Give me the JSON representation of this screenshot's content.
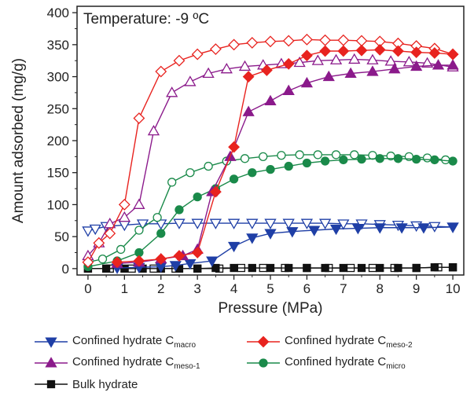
{
  "chart_data": {
    "type": "line",
    "annotation": "Temperature: -9 ºC",
    "xlabel": "Pressure (MPa)",
    "ylabel": "Amount adsorbed (mg/g)",
    "xlim": [
      -0.3,
      10.3
    ],
    "ylim": [
      -10,
      410
    ],
    "xticks": [
      0,
      1,
      2,
      3,
      4,
      5,
      6,
      7,
      8,
      9,
      10
    ],
    "yticks": [
      0,
      50,
      100,
      150,
      200,
      250,
      300,
      350,
      400
    ],
    "grid": false,
    "legend_position": "bottom",
    "series": [
      {
        "name": "Confined hydrate C",
        "subscript": "macro",
        "color": "#1f3fa6",
        "marker": "triangle-down",
        "adsorption": {
          "x": [
            0.8,
            1.4,
            2.0,
            2.4,
            2.8,
            3.4,
            4.0,
            4.5,
            5.0,
            5.6,
            6.2,
            6.8,
            7.4,
            8.0,
            8.6,
            9.2,
            10.0
          ],
          "y": [
            1,
            2,
            3,
            5,
            8,
            12,
            35,
            48,
            55,
            58,
            60,
            62,
            63,
            64,
            64,
            64,
            65
          ]
        },
        "desorption": {
          "x": [
            0.0,
            0.2,
            0.5,
            1.0,
            1.5,
            2.0,
            2.5,
            3.0,
            3.5,
            4.0,
            4.5,
            5.0,
            5.5,
            6.0,
            6.5,
            7.0,
            7.5,
            8.0,
            8.5,
            9.0,
            9.5,
            10.0
          ],
          "y": [
            59,
            62,
            66,
            68,
            70,
            70,
            71,
            71,
            71,
            71,
            71,
            71,
            71,
            71,
            71,
            70,
            70,
            69,
            68,
            67,
            66,
            65
          ]
        }
      },
      {
        "name": "Confined hydrate C",
        "subscript": "meso-2",
        "color": "#e8231f",
        "marker": "diamond",
        "adsorption": {
          "x": [
            0.8,
            1.4,
            2.0,
            2.5,
            3.0,
            3.5,
            4.0,
            4.4,
            4.9,
            5.5,
            6.0,
            6.5,
            7.0,
            7.5,
            8.0,
            8.5,
            9.0,
            9.5,
            10.0
          ],
          "y": [
            10,
            12,
            15,
            20,
            25,
            120,
            190,
            300,
            310,
            320,
            333,
            340,
            340,
            341,
            342,
            340,
            338,
            337,
            335
          ]
        },
        "desorption": {
          "x": [
            0.0,
            0.3,
            0.6,
            1.0,
            1.4,
            2.0,
            2.5,
            3.0,
            3.5,
            4.0,
            4.5,
            5.0,
            5.5,
            6.0,
            6.5,
            7.0,
            7.5,
            8.0,
            8.5,
            9.0,
            9.5,
            10.0
          ],
          "y": [
            10,
            40,
            55,
            100,
            235,
            308,
            325,
            335,
            343,
            350,
            353,
            355,
            356,
            358,
            357,
            357,
            356,
            355,
            352,
            348,
            344,
            335
          ]
        }
      },
      {
        "name": "Confined hydrate C",
        "subscript": "meso-1",
        "color": "#8b1a8b",
        "marker": "triangle-up",
        "adsorption": {
          "x": [
            0.8,
            1.4,
            2.0,
            2.6,
            3.0,
            3.4,
            3.9,
            4.4,
            5.0,
            5.5,
            6.0,
            6.6,
            7.2,
            7.8,
            8.4,
            9.0,
            9.6,
            10.0
          ],
          "y": [
            8,
            10,
            15,
            20,
            30,
            120,
            175,
            245,
            262,
            278,
            290,
            300,
            305,
            308,
            312,
            316,
            318,
            318
          ]
        },
        "desorption": {
          "x": [
            0.0,
            0.3,
            0.6,
            1.0,
            1.4,
            1.8,
            2.3,
            2.8,
            3.3,
            3.8,
            4.3,
            4.8,
            5.3,
            5.8,
            6.3,
            6.8,
            7.3,
            7.8,
            8.3,
            8.8,
            9.3,
            10.0
          ],
          "y": [
            20,
            40,
            70,
            80,
            100,
            215,
            275,
            292,
            305,
            312,
            316,
            318,
            320,
            322,
            325,
            326,
            327,
            326,
            324,
            323,
            321,
            315
          ]
        }
      },
      {
        "name": "Confined hydrate C",
        "subscript": "micro",
        "color": "#1a8a4a",
        "marker": "circle",
        "adsorption": {
          "x": [
            0.0,
            0.8,
            1.4,
            2.0,
            2.5,
            3.0,
            3.5,
            4.0,
            4.5,
            5.0,
            5.5,
            6.0,
            6.5,
            7.0,
            7.5,
            8.0,
            8.5,
            9.0,
            9.5,
            10.0
          ],
          "y": [
            3,
            12,
            25,
            55,
            92,
            112,
            125,
            140,
            150,
            155,
            160,
            165,
            168,
            170,
            171,
            172,
            172,
            171,
            170,
            168
          ]
        },
        "desorption": {
          "x": [
            0.0,
            0.4,
            0.9,
            1.4,
            1.9,
            2.3,
            2.8,
            3.3,
            3.8,
            4.3,
            4.8,
            5.3,
            5.8,
            6.3,
            6.8,
            7.3,
            7.8,
            8.3,
            8.8,
            9.3,
            9.8
          ],
          "y": [
            10,
            15,
            30,
            60,
            80,
            135,
            150,
            160,
            168,
            172,
            175,
            177,
            178,
            178,
            178,
            178,
            177,
            176,
            175,
            173,
            170
          ]
        }
      },
      {
        "name": "Bulk hydrate",
        "subscript": "",
        "color": "#111111",
        "marker": "square",
        "adsorption": {
          "x": [
            0.0,
            0.5,
            1.0,
            1.5,
            2.0,
            2.5,
            3.0,
            3.5,
            4.0,
            4.5,
            5.0,
            5.5,
            6.0,
            6.5,
            7.0,
            7.5,
            8.0,
            8.5,
            9.0,
            9.5,
            10.0
          ],
          "y": [
            0,
            0,
            0,
            0,
            0,
            0,
            0,
            1,
            1,
            1,
            1,
            1,
            1,
            1,
            1,
            1,
            1,
            1,
            1,
            2,
            2
          ]
        },
        "desorption": {
          "x": [
            0.0,
            0.6,
            1.2,
            1.8,
            2.4,
            3.0,
            3.6,
            4.2,
            4.8,
            5.4,
            6.0,
            6.6,
            7.2,
            7.8,
            8.4,
            9.0,
            9.6,
            10.0
          ],
          "y": [
            0,
            0,
            0,
            0,
            0,
            0,
            0,
            1,
            1,
            1,
            1,
            1,
            1,
            1,
            1,
            1,
            2,
            2
          ]
        }
      }
    ]
  },
  "legend": {
    "items": [
      {
        "label": "Confined hydrate C",
        "sub": "macro"
      },
      {
        "label": "Confined hydrate C",
        "sub": "meso-2"
      },
      {
        "label": "Confined hydrate C",
        "sub": "meso-1"
      },
      {
        "label": "Confined hydrate C",
        "sub": "micro"
      },
      {
        "label": "Bulk hydrate",
        "sub": ""
      }
    ]
  }
}
